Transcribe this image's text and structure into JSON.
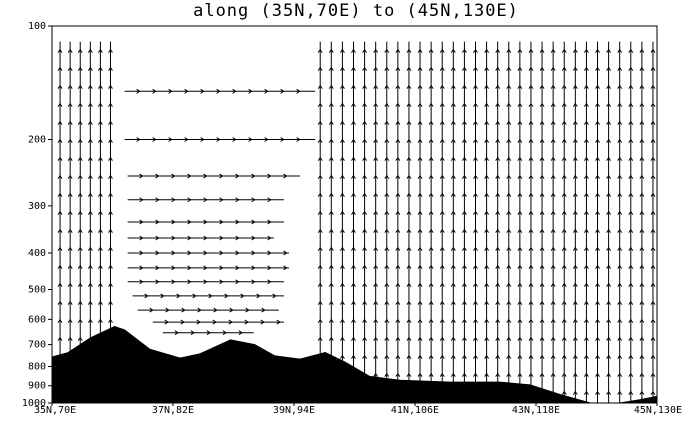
{
  "chart_data": {
    "type": "vector-section",
    "title": "along (35N,70E) to (45N,130E)",
    "xlim": [
      70,
      130
    ],
    "ylim": [
      1000,
      100
    ],
    "log_y": true,
    "xticks": [
      {
        "value": 70,
        "label": "35N,70E"
      },
      {
        "value": 82,
        "label": "37N,82E"
      },
      {
        "value": 94,
        "label": "39N,94E"
      },
      {
        "value": 106,
        "label": "41N,106E"
      },
      {
        "value": 118,
        "label": "43N,118E"
      },
      {
        "value": 130,
        "label": "45N,130E"
      }
    ],
    "yticks": [
      100,
      200,
      300,
      400,
      500,
      600,
      700,
      800,
      900,
      1000
    ],
    "terrain": {
      "color": "#000000",
      "x": [
        70,
        71.6,
        73.8,
        76.2,
        77.2,
        79.7,
        82.7,
        84.7,
        87.7,
        90.1,
        92.1,
        94.6,
        97.1,
        99.1,
        101.5,
        104.5,
        109.5,
        114.4,
        117.4,
        120.4,
        123.4,
        126.3,
        128.3,
        130
      ],
      "values": [
        755,
        735,
        672,
        627,
        640,
        720,
        760,
        740,
        680,
        700,
        750,
        765,
        735,
        780,
        850,
        870,
        880,
        880,
        895,
        950,
        1000,
        1000,
        980,
        960
      ]
    },
    "vertical_vectors": {
      "color": "#000000",
      "x": [
        70.8,
        71.8,
        72.8,
        73.8,
        74.8,
        75.8,
        96.6,
        97.7,
        98.8,
        99.9,
        101,
        102.1,
        103.2,
        104.3,
        105.4,
        106.5,
        107.6,
        108.7,
        109.8,
        110.9,
        112,
        113.1,
        114.2,
        115.3,
        116.4,
        117.5,
        118.6,
        119.7,
        120.8,
        121.9,
        123,
        124.1,
        125.2,
        126.3,
        127.4,
        128.5,
        129.6
      ],
      "top": [
        110,
        110,
        110,
        110,
        110,
        110,
        110,
        110,
        110,
        110,
        110,
        110,
        110,
        110,
        110,
        110,
        110,
        110,
        110,
        110,
        110,
        110,
        110,
        110,
        110,
        110,
        110,
        110,
        110,
        110,
        110,
        110,
        110,
        110,
        110,
        110,
        110
      ]
    },
    "horizontal_vectors": {
      "color": "#000000",
      "level": [
        149,
        200,
        250,
        289,
        331,
        365,
        400,
        438,
        477,
        520,
        567,
        610,
        651
      ],
      "start": [
        77.2,
        77.2,
        77.5,
        77.5,
        77.5,
        77.5,
        77.5,
        77.5,
        77.5,
        78,
        78.5,
        80,
        81
      ],
      "end": [
        96.1,
        96.1,
        94.6,
        93,
        93,
        92,
        93.5,
        93.5,
        93,
        93,
        92.5,
        93,
        90
      ]
    }
  }
}
